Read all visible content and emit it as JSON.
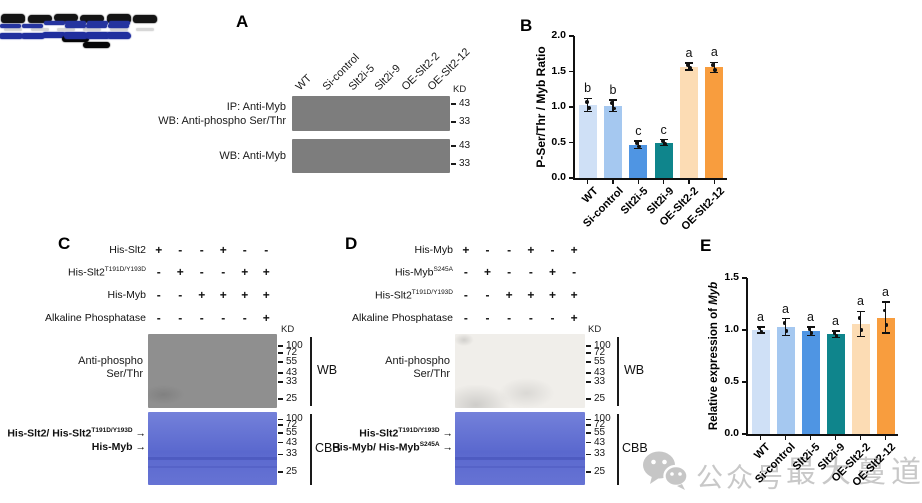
{
  "figure": {
    "panel_labels": {
      "a": "A",
      "b": "B",
      "c": "C",
      "d": "D",
      "e": "E"
    }
  },
  "panel_a": {
    "lane_labels": [
      "WT",
      "Si-control",
      "Slt2i-5",
      "Slt2i-9",
      "OE-Slt2-2",
      "OE-Slt2-12"
    ],
    "kd_unit": "KD",
    "blot1": {
      "label_line1": "IP: Anti-Myb",
      "label_line2": "WB: Anti-phospho Ser/Thr",
      "markers": [
        "43",
        "33"
      ],
      "band_intensity": [
        1,
        0.9,
        0.5,
        0.55,
        1,
        1
      ]
    },
    "blot2": {
      "label": "WB: Anti-Myb",
      "markers": [
        "43",
        "33"
      ],
      "band_intensity": [
        1,
        1,
        1,
        1,
        1,
        1
      ]
    }
  },
  "panel_c": {
    "treatments": [
      {
        "name": "His-Slt2",
        "sup": "",
        "signs": [
          "+",
          "-",
          "-",
          "+",
          "-",
          "-"
        ]
      },
      {
        "name": "His-Slt2",
        "sup": "T191D/Y193D",
        "signs": [
          "-",
          "+",
          "-",
          "-",
          "+",
          "+"
        ]
      },
      {
        "name": "His-Myb",
        "sup": "",
        "signs": [
          "-",
          "-",
          "+",
          "+",
          "+",
          "+"
        ]
      },
      {
        "name": "Alkaline Phosphatase",
        "sup": "",
        "signs": [
          "-",
          "-",
          "-",
          "-",
          "-",
          "+"
        ]
      }
    ],
    "kd_unit": "KD",
    "markers": [
      "100",
      "72",
      "55",
      "43",
      "33",
      "25"
    ],
    "wb": {
      "label_line1": "Anti-phospho",
      "label_line2": "Ser/Thr",
      "tag": "WB",
      "band_lanes": [
        5
      ]
    },
    "cbb": {
      "tag": "CBB",
      "upper": {
        "label": "His-Slt2/ His-Slt2",
        "label_sup": "T191D/Y193D",
        "lanes": [
          1,
          2,
          4,
          5,
          6
        ]
      },
      "lower": {
        "label": "His-Myb",
        "label_sup": "",
        "lanes": [
          3,
          4,
          5,
          6
        ]
      }
    }
  },
  "panel_d": {
    "treatments": [
      {
        "name": "His-Myb",
        "sup": "",
        "signs": [
          "+",
          "-",
          "-",
          "+",
          "-",
          "+"
        ]
      },
      {
        "name": "His-Myb",
        "sup": "S245A",
        "signs": [
          "-",
          "+",
          "-",
          "-",
          "+",
          "-"
        ]
      },
      {
        "name": "His-Slt2",
        "sup": "T191D/Y193D",
        "signs": [
          "-",
          "-",
          "+",
          "+",
          "+",
          "+"
        ]
      },
      {
        "name": "Alkaline Phosphatase",
        "sup": "",
        "signs": [
          "-",
          "-",
          "-",
          "-",
          "-",
          "+"
        ]
      }
    ],
    "kd_unit": "KD",
    "markers": [
      "100",
      "72",
      "55",
      "43",
      "33",
      "25"
    ],
    "wb": {
      "label_line1": "Anti-phospho",
      "label_line2": "Ser/Thr",
      "tag": "WB",
      "band_lanes": [
        4
      ]
    },
    "cbb": {
      "tag": "CBB",
      "upper": {
        "label": "His-Slt2",
        "label_sup": "T191D/Y193D",
        "lanes": [
          3,
          4,
          5,
          6
        ]
      },
      "lower": {
        "label": "His-Myb/ His-Myb",
        "label_sup": "S245A",
        "lanes": [
          1,
          2,
          4,
          5,
          6
        ]
      }
    }
  },
  "chart_data": [
    {
      "panel": "B",
      "type": "bar",
      "categories": [
        "WT",
        "Si-control",
        "Slt2i-5",
        "Slt2i-9",
        "OE-Slt2-2",
        "OE-Slt2-12"
      ],
      "values": [
        1.03,
        1.02,
        0.47,
        0.5,
        1.57,
        1.56
      ],
      "errors": [
        0.09,
        0.08,
        0.05,
        0.04,
        0.05,
        0.07
      ],
      "sig_letters": [
        "b",
        "b",
        "c",
        "c",
        "a",
        "a"
      ],
      "title": "",
      "xlabel": "",
      "ylabel": "P-Ser/Thr / Myb Ratio",
      "ylabel_italic": "",
      "yticks": [
        0,
        0.5,
        1,
        1.5,
        2
      ],
      "ylim": [
        0,
        2
      ],
      "bar_colors": [
        "#cfe0f6",
        "#a5c8f0",
        "#4f95e3",
        "#0f858c",
        "#fcdcb4",
        "#f89d3e"
      ],
      "legend": "none",
      "grid": false
    },
    {
      "panel": "E",
      "type": "bar",
      "categories": [
        "WT",
        "Si-control",
        "Slt2i-5",
        "Slt2i-9",
        "OE-Slt2-2",
        "OE-Slt2-12"
      ],
      "values": [
        1.0,
        1.03,
        0.99,
        0.96,
        1.06,
        1.12
      ],
      "errors": [
        0.03,
        0.08,
        0.04,
        0.03,
        0.12,
        0.15
      ],
      "sig_letters": [
        "a",
        "a",
        "a",
        "a",
        "a",
        "a"
      ],
      "title": "",
      "xlabel": "",
      "ylabel": "Relative expression of ",
      "ylabel_italic": "Myb",
      "yticks": [
        0,
        0.5,
        1,
        1.5
      ],
      "ylim": [
        0,
        1.5
      ],
      "bar_colors": [
        "#cfe0f6",
        "#a5c8f0",
        "#4f95e3",
        "#0f858c",
        "#fcdcb4",
        "#f89d3e"
      ],
      "legend": "none",
      "grid": false
    }
  ],
  "watermark": {
    "icon": "wechat-icon",
    "text": "公众号",
    "text2": "最大蔓道"
  }
}
